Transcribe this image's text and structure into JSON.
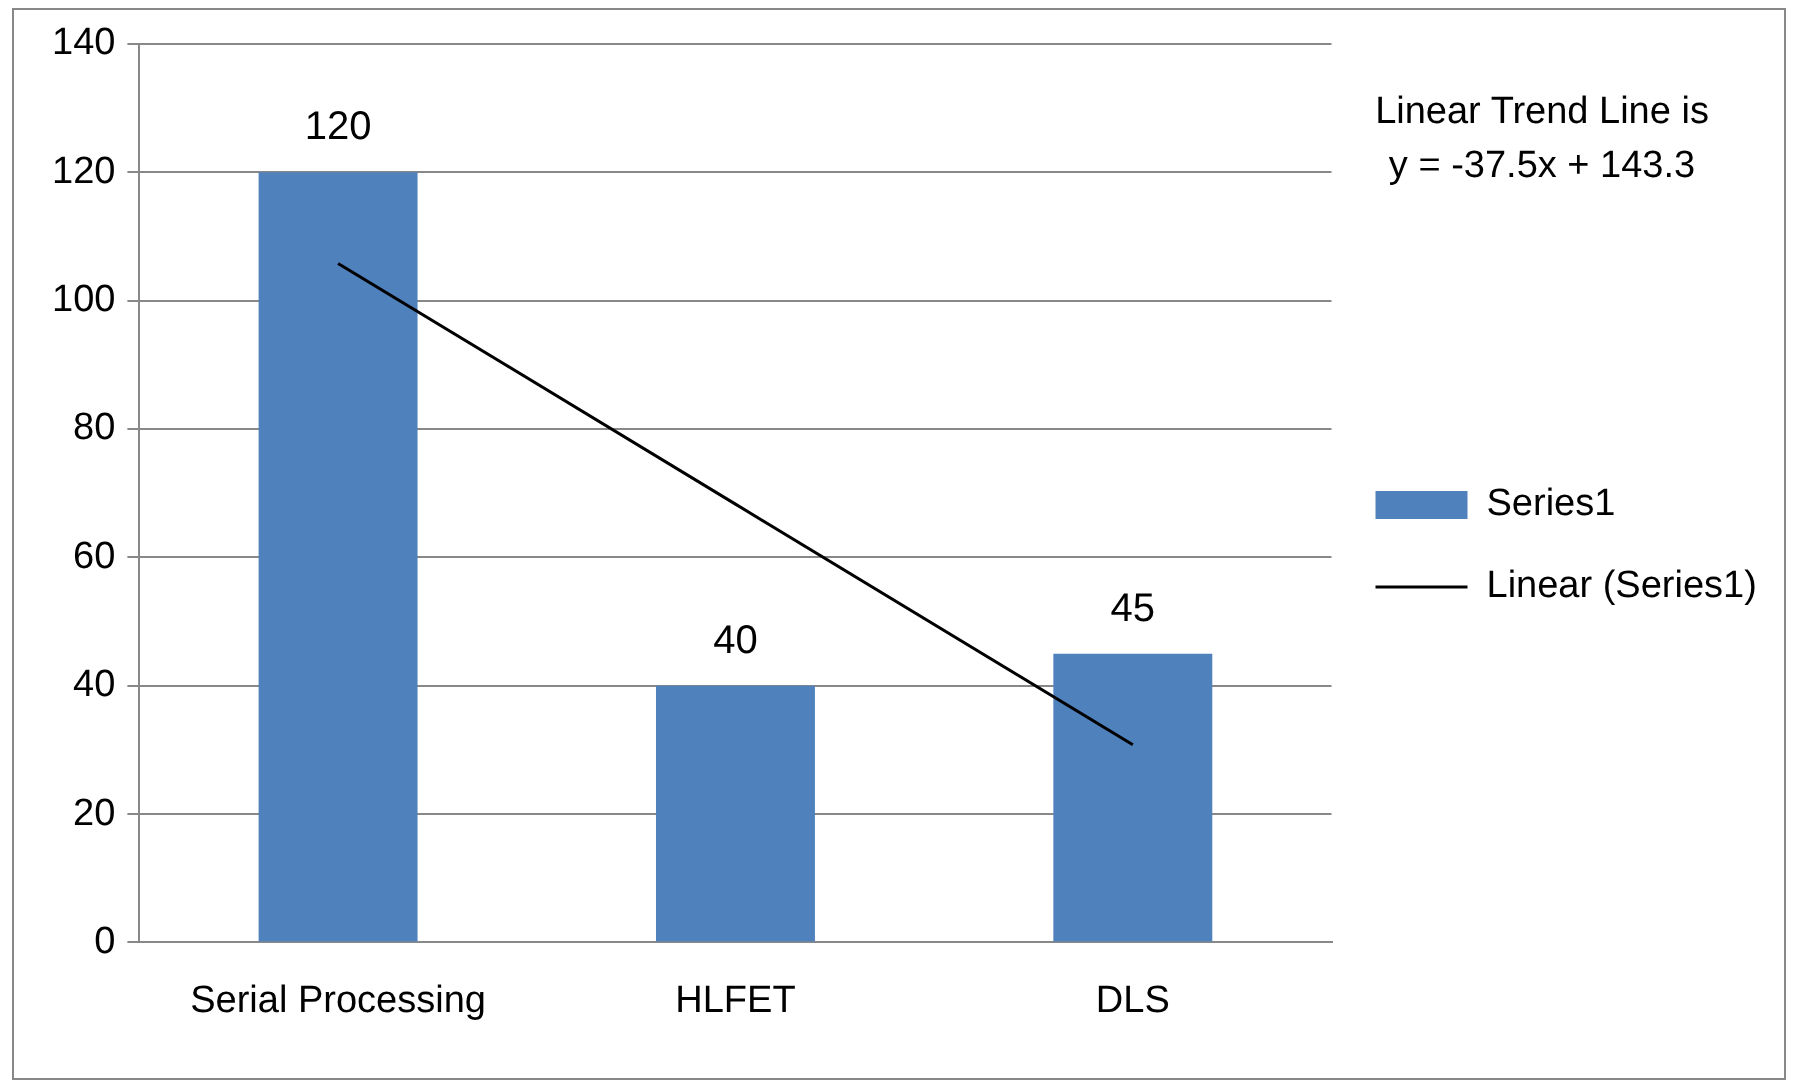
{
  "chart_data": {
    "type": "bar",
    "categories": [
      "Serial Processing",
      "HLFET",
      "DLS"
    ],
    "series": [
      {
        "name": "Series1",
        "color": "#4f81bd",
        "values": [
          120,
          40,
          45
        ],
        "value_labels": [
          "120",
          "40",
          "45"
        ]
      },
      {
        "name": "Linear (Series1)",
        "type": "line",
        "color": "#000000",
        "values": [
          105.8,
          68.3,
          30.8
        ],
        "marker": "none"
      }
    ],
    "ylim": [
      0,
      140
    ],
    "yticks": [
      0,
      20,
      40,
      60,
      80,
      100,
      120,
      140
    ],
    "grid": "y",
    "legend": "right",
    "annotations": [
      "Linear Trend Line is\ny = -37.5x + 143.3"
    ]
  }
}
